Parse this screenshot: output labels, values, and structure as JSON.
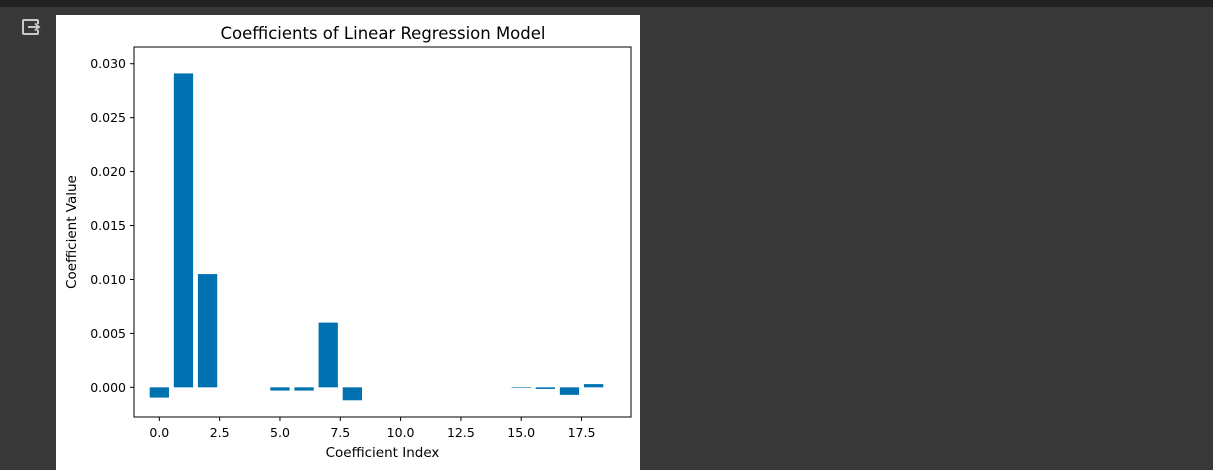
{
  "output": {
    "icon": "output-exit-icon"
  },
  "colors": {
    "background": "#383838",
    "topbar": "#212121",
    "bar": "#0072b2",
    "icon": "#c8c8c8"
  },
  "chart_data": {
    "type": "bar",
    "title": "Coefficients of Linear Regression Model",
    "xlabel": "Coefficient Index",
    "ylabel": "Coefficient Value",
    "x": [
      0,
      1,
      2,
      5,
      6,
      7,
      8,
      15,
      16,
      17,
      18
    ],
    "values": [
      -0.00095,
      0.0291,
      0.0105,
      -0.0003,
      -0.0003,
      0.006,
      -0.0012,
      -5e-05,
      -0.00015,
      -0.0007,
      0.0003
    ],
    "xlim": [
      -1.05,
      19.55
    ],
    "ylim": [
      -0.00275,
      0.03155
    ],
    "xticks": [
      0,
      2.5,
      5,
      7.5,
      10,
      12.5,
      15,
      17.5
    ],
    "xtick_labels": [
      "0.0",
      "2.5",
      "5.0",
      "7.5",
      "10.0",
      "12.5",
      "15.0",
      "17.5"
    ],
    "yticks": [
      0,
      0.005,
      0.01,
      0.015,
      0.02,
      0.025,
      0.03
    ],
    "ytick_labels": [
      "0.000",
      "0.005",
      "0.010",
      "0.015",
      "0.020",
      "0.025",
      "0.030"
    ],
    "grid": false,
    "legend": "none"
  }
}
